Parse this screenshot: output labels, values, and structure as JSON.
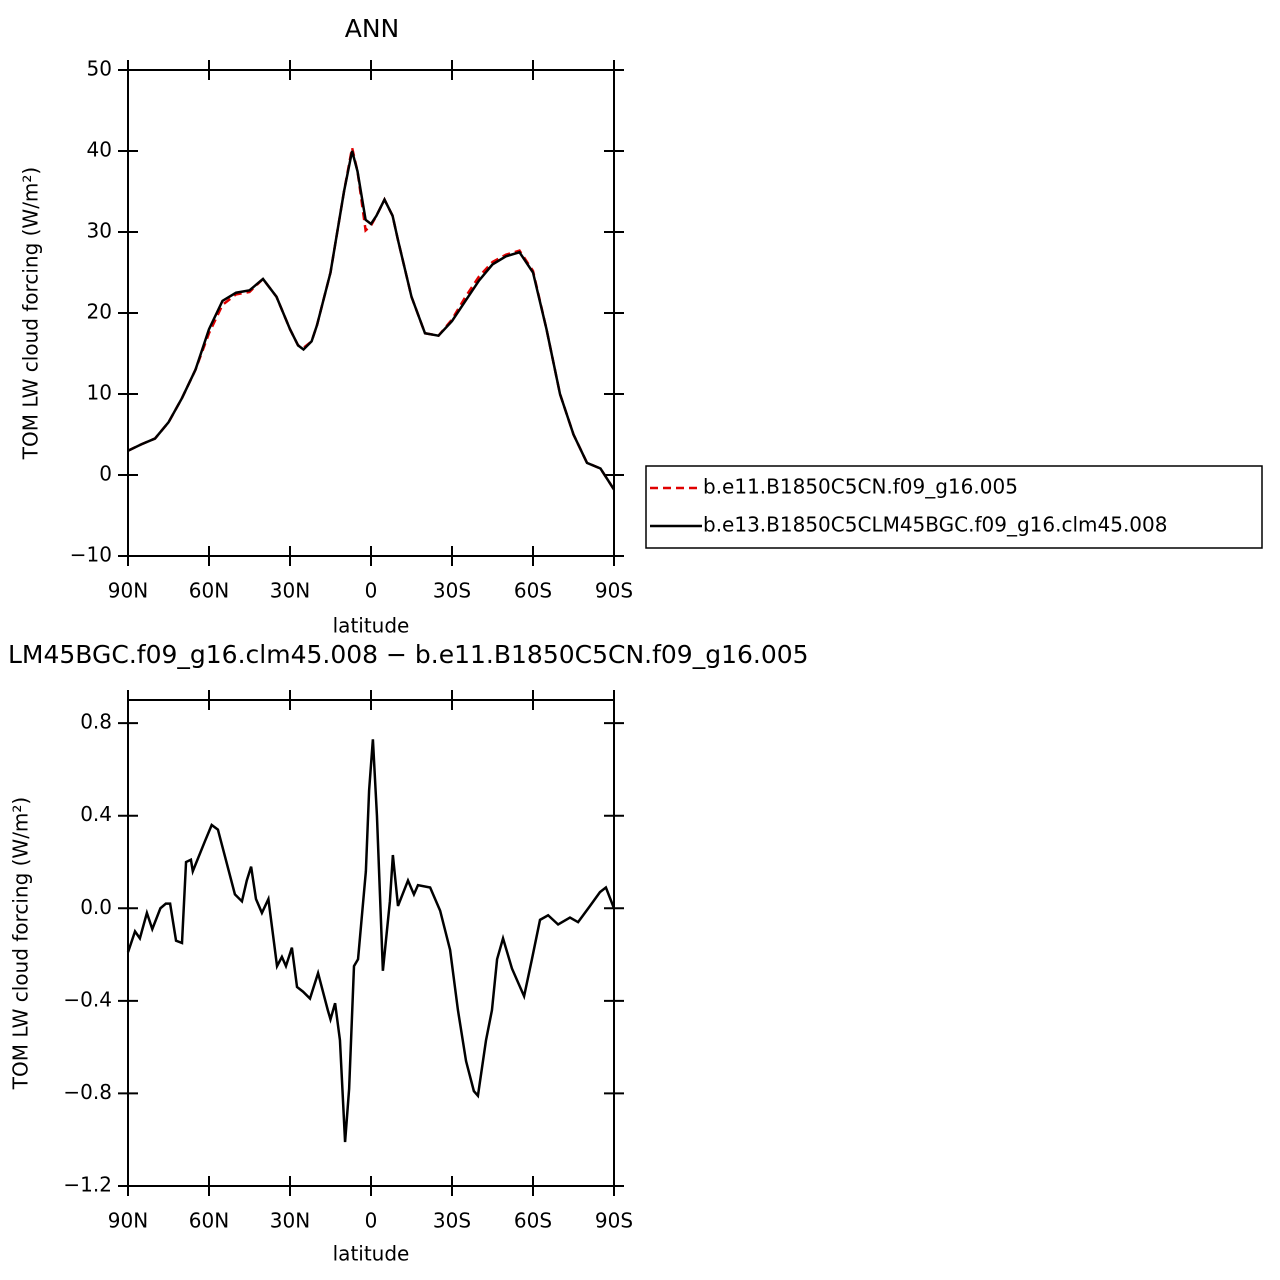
{
  "chart_data": [
    {
      "type": "line",
      "title": "ANN",
      "xlabel": "latitude",
      "ylabel": "TOM LW cloud forcing (W/m²)",
      "xlim": [
        90,
        -90
      ],
      "xticks": [
        {
          "value": 90,
          "label": "90N"
        },
        {
          "value": 60,
          "label": "60N"
        },
        {
          "value": 30,
          "label": "30N"
        },
        0,
        {
          "value": -30,
          "label": "30S"
        },
        {
          "value": -60,
          "label": "60S"
        },
        {
          "value": -90,
          "label": "90S"
        }
      ],
      "ylim": [
        -10,
        50
      ],
      "yticks": [
        {
          "value": -10,
          "label": "−10"
        },
        0,
        10,
        20,
        30,
        40,
        50
      ],
      "legend_position": "right",
      "x": [
        90,
        85,
        80,
        75,
        70,
        65,
        60,
        55,
        50,
        45,
        40,
        35,
        30,
        27,
        25,
        22,
        20,
        15,
        10,
        7,
        5,
        2,
        0,
        -2,
        -5,
        -8,
        -10,
        -15,
        -20,
        -25,
        -30,
        -35,
        -40,
        -45,
        -50,
        -55,
        -60,
        -65,
        -70,
        -75,
        -80,
        -85,
        -90
      ],
      "series": [
        {
          "name": "b.e11.B1850C5CN.f09_g16.005",
          "color": "#e00000",
          "linestyle": "dashed",
          "values": [
            3,
            3.8,
            4.5,
            6.5,
            9.5,
            13,
            17.5,
            21,
            22.3,
            22.6,
            24.2,
            22,
            18,
            16,
            15.7,
            16.5,
            18.5,
            25,
            35,
            40.4,
            37.5,
            30.2,
            30.8,
            32,
            34,
            32,
            29,
            22,
            17.5,
            17.2,
            19.2,
            22,
            24.5,
            26.3,
            27.2,
            27.7,
            25.2,
            18,
            10,
            5,
            1.5,
            0.8,
            -1.8
          ]
        },
        {
          "name": "b.e13.B1850C5CLM45BGC.f09_g16.clm45.008",
          "color": "#000000",
          "linestyle": "solid",
          "values": [
            3,
            3.8,
            4.5,
            6.5,
            9.5,
            13,
            18,
            21.5,
            22.5,
            22.8,
            24.2,
            22,
            18,
            16,
            15.5,
            16.5,
            18.5,
            25,
            35,
            40,
            37.5,
            31.5,
            31,
            32,
            34,
            32,
            29,
            22,
            17.5,
            17.2,
            19,
            21.5,
            24,
            26,
            27,
            27.5,
            25,
            18,
            10,
            5,
            1.5,
            0.8,
            -1.8
          ]
        }
      ]
    },
    {
      "type": "line",
      "title": "LM45BGC.f09_g16.clm45.008 − b.e11.B1850C5CN.f09_g16.005",
      "xlabel": "latitude",
      "ylabel": "TOM LW cloud forcing (W/m²)",
      "xlim": [
        90,
        -90
      ],
      "xticks": [
        {
          "value": 90,
          "label": "90N"
        },
        {
          "value": 60,
          "label": "60N"
        },
        {
          "value": 30,
          "label": "30N"
        },
        0,
        {
          "value": -30,
          "label": "30S"
        },
        {
          "value": -60,
          "label": "60S"
        },
        {
          "value": -90,
          "label": "90S"
        }
      ],
      "ylim": [
        -1.2,
        0.9
      ],
      "yticks": [
        {
          "value": -1.2,
          "label": "−1.2"
        },
        {
          "value": -0.8,
          "label": "−0.8"
        },
        {
          "value": -0.4,
          "label": "−0.4"
        },
        {
          "value": 0,
          "label": "0.0"
        },
        0.4,
        0.8
      ],
      "x": [
        90,
        87.4,
        85.6,
        83,
        81,
        78,
        76,
        74.4,
        72.2,
        70,
        68.5,
        66.7,
        66,
        61.5,
        59,
        56.7,
        54,
        50.4,
        47.8,
        46,
        44.4,
        42.6,
        40.4,
        38,
        34.8,
        33,
        31.5,
        29.3,
        27.4,
        25.2,
        22.6,
        19.6,
        16,
        15,
        13.3,
        11.5,
        9.6,
        8.1,
        6.3,
        4.8,
        1.9,
        0.7,
        -0.7,
        -2.2,
        -4.4,
        -7,
        -8.1,
        -10,
        -13.7,
        -15.9,
        -17.4,
        -21.9,
        -25.6,
        -29.3,
        -32.2,
        -35.2,
        -38.1,
        -39.6,
        -42.6,
        -44.8,
        -46.7,
        -48.9,
        -52.2,
        -56.7,
        -59.6,
        -62.6,
        -65.6,
        -69.3,
        -73.7,
        -76.7,
        -81.1,
        -84.8,
        -87,
        -90
      ],
      "series": [
        {
          "color": "#000000",
          "linestyle": "solid",
          "values": [
            -0.19,
            -0.1,
            -0.13,
            -0.02,
            -0.09,
            0,
            0.02,
            0.02,
            -0.14,
            -0.15,
            0.2,
            0.21,
            0.16,
            0.29,
            0.36,
            0.34,
            0.22,
            0.06,
            0.03,
            0.12,
            0.18,
            0.04,
            -0.02,
            0.04,
            -0.25,
            -0.21,
            -0.25,
            -0.17,
            -0.34,
            -0.36,
            -0.39,
            -0.28,
            -0.44,
            -0.48,
            -0.41,
            -0.57,
            -1.01,
            -0.78,
            -0.25,
            -0.22,
            0.16,
            0.51,
            0.73,
            0.4,
            -0.27,
            0.03,
            0.23,
            0.01,
            0.12,
            0.06,
            0.1,
            0.09,
            -0.01,
            -0.18,
            -0.44,
            -0.66,
            -0.79,
            -0.81,
            -0.57,
            -0.44,
            -0.22,
            -0.13,
            -0.26,
            -0.38,
            -0.22,
            -0.05,
            -0.03,
            -0.07,
            -0.04,
            -0.06,
            0.01,
            0.07,
            0.09,
            0
          ]
        }
      ]
    }
  ]
}
